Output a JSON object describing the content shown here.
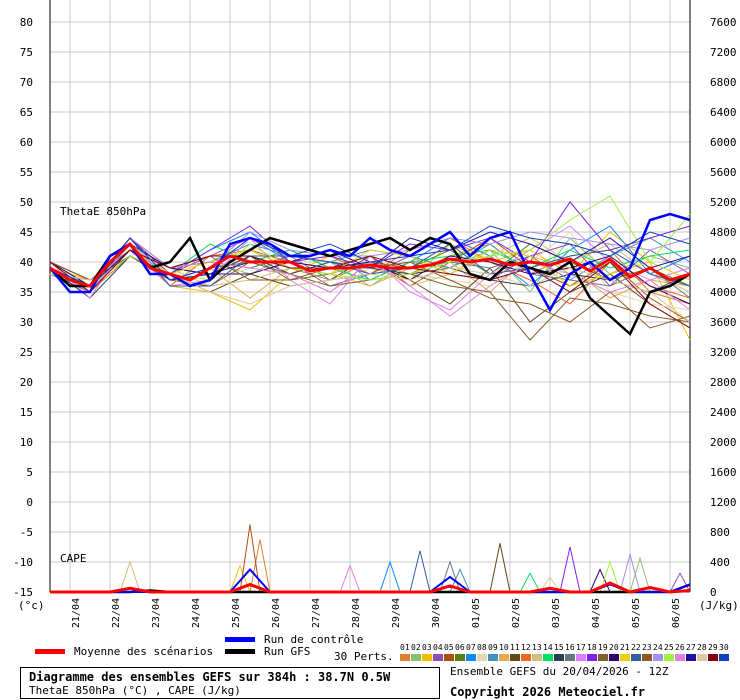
{
  "chart_data": {
    "type": "line",
    "title": "Diagramme des ensembles GEFS sur 384h : 38.7N 0.5W",
    "subtitle": "ThetaE 850hPa (°C) , CAPE (J/kg)",
    "run_info": "Ensemble GEFS du 20/04/2026 - 12Z",
    "copyright": "Copyright 2026 Meteociel.fr",
    "panel_labels": {
      "thetae": "ThetaE 850hPa",
      "cape": "CAPE"
    },
    "y_left": {
      "unit": "(°c)",
      "range": [
        -15,
        80
      ],
      "ticks": [
        80,
        75,
        70,
        65,
        60,
        55,
        50,
        45,
        40,
        35,
        30,
        25,
        20,
        15,
        10,
        5,
        0,
        -5,
        -10,
        -15
      ]
    },
    "y_right": {
      "unit": "(J/kg)",
      "range": [
        0,
        7600
      ],
      "ticks": [
        7600,
        7200,
        6800,
        6400,
        6000,
        5600,
        5200,
        4800,
        4400,
        4000,
        3600,
        3200,
        2800,
        2400,
        2000,
        1600,
        1200,
        800,
        400,
        0
      ]
    },
    "x": {
      "unit": "hours",
      "range": [
        0,
        384
      ],
      "start": "20/04 12Z",
      "tick_labels": [
        "21/04",
        "22/04",
        "23/04",
        "24/04",
        "25/04",
        "26/04",
        "27/04",
        "28/04",
        "29/04",
        "30/04",
        "01/05",
        "02/05",
        "03/05",
        "04/05",
        "05/05",
        "06/05"
      ]
    },
    "legend": {
      "mean": "Moyenne des scénarios",
      "control": "Run de contrôle",
      "gfs": "Run GFS",
      "perts": "30 Perts."
    },
    "colors": {
      "mean": "#ff0000",
      "control": "#0000ff",
      "gfs": "#000000",
      "perts": [
        "#e07f30",
        "#88c070",
        "#f0c000",
        "#9050b0",
        "#b05010",
        "#588010",
        "#1088ff",
        "#e8d8b0",
        "#4090c0",
        "#e8a850",
        "#604818",
        "#f06820",
        "#d0c080",
        "#00e060",
        "#284058",
        "#687880",
        "#e080f8",
        "#8020f0",
        "#806030",
        "#300070",
        "#f0d000",
        "#3060a0",
        "#905820",
        "#a090f0",
        "#a0f040",
        "#e080e0",
        "#2010a0",
        "#e0c8a0",
        "#880010",
        "#1040c0"
      ]
    },
    "pert_labels": [
      "01",
      "02",
      "03",
      "04",
      "05",
      "06",
      "07",
      "08",
      "09",
      "10",
      "11",
      "12",
      "13",
      "14",
      "15",
      "16",
      "17",
      "18",
      "19",
      "20",
      "21",
      "22",
      "23",
      "24",
      "25",
      "26",
      "27",
      "28",
      "29",
      "30"
    ],
    "thetae_step_h": 12,
    "mean": [
      39,
      37,
      36,
      40,
      43,
      39,
      38,
      37,
      39,
      41,
      40,
      40,
      40,
      38.5,
      39,
      39,
      39.5,
      39,
      39,
      39.5,
      40.5,
      40,
      40.5,
      39.5,
      40,
      39.5,
      40.5,
      38.5,
      40.5,
      37.5,
      39,
      37,
      38
    ],
    "control": [
      39,
      35,
      35,
      41,
      43,
      38,
      38,
      36,
      37,
      43,
      44,
      43,
      41,
      41,
      42,
      41,
      44,
      42,
      41,
      43,
      45,
      41,
      44,
      45,
      38,
      32,
      38,
      40,
      37,
      39,
      47,
      48,
      47
    ],
    "gfs": [
      39,
      36,
      36,
      41,
      43,
      39,
      40,
      44,
      37,
      40,
      42,
      44,
      43,
      42,
      41,
      42,
      43,
      44,
      42,
      44,
      43,
      38,
      37,
      40,
      39,
      38,
      40,
      34,
      31,
      28,
      35,
      36,
      38
    ],
    "pert_step_h": 24,
    "perts": [
      [
        38,
        35,
        41,
        37,
        38,
        42,
        39,
        37,
        40,
        38,
        41,
        43,
        38,
        41,
        42,
        35,
        33
      ],
      [
        40,
        36,
        44,
        39,
        40,
        38,
        41,
        40,
        36,
        40,
        39,
        42,
        35,
        44,
        38,
        41,
        39
      ],
      [
        39,
        37,
        42,
        36,
        35,
        32,
        38,
        41,
        39,
        37,
        43,
        40,
        42,
        38,
        45,
        40,
        27
      ],
      [
        38,
        35,
        43,
        38,
        41,
        44,
        40,
        36,
        38,
        41,
        38,
        37,
        41,
        43,
        36,
        42,
        38
      ],
      [
        40,
        36,
        42,
        37,
        36,
        40,
        42,
        39,
        41,
        36,
        40,
        44,
        39,
        36,
        40,
        34,
        30
      ],
      [
        39,
        34,
        44,
        39,
        38,
        41,
        37,
        38,
        40,
        39,
        42,
        38,
        43,
        40,
        37,
        39,
        36
      ],
      [
        38,
        36,
        41,
        38,
        42,
        45,
        40,
        42,
        37,
        40,
        44,
        41,
        36,
        42,
        46,
        38,
        41
      ],
      [
        40,
        37,
        43,
        36,
        37,
        39,
        38,
        35,
        39,
        38,
        37,
        36,
        40,
        45,
        35,
        33,
        32
      ],
      [
        39,
        35,
        42,
        39,
        40,
        43,
        41,
        40,
        42,
        41,
        39,
        43,
        38,
        37,
        41,
        44,
        40
      ],
      [
        38,
        36,
        44,
        37,
        39,
        34,
        39,
        38,
        36,
        39,
        40,
        35,
        41,
        39,
        34,
        37,
        36
      ],
      [
        40,
        37,
        41,
        38,
        35,
        38,
        36,
        37,
        41,
        37,
        33,
        39,
        30,
        35,
        38,
        33,
        29
      ],
      [
        39,
        35,
        43,
        36,
        41,
        42,
        40,
        41,
        38,
        42,
        44,
        40,
        37,
        33,
        40,
        36,
        34
      ],
      [
        38,
        36,
        42,
        39,
        36,
        37,
        39,
        38,
        40,
        36,
        38,
        41,
        44,
        40,
        43,
        38,
        35
      ],
      [
        40,
        36,
        44,
        38,
        43,
        40,
        42,
        39,
        37,
        40,
        41,
        42,
        39,
        42,
        39,
        41,
        42
      ],
      [
        39,
        34,
        41,
        37,
        38,
        41,
        38,
        40,
        39,
        38,
        39,
        37,
        36,
        38,
        37,
        35,
        38
      ],
      [
        38,
        37,
        43,
        39,
        40,
        39,
        41,
        37,
        38,
        39,
        40,
        39,
        41,
        37,
        36,
        39,
        34
      ],
      [
        40,
        35,
        42,
        36,
        37,
        44,
        37,
        33,
        41,
        35,
        32,
        38,
        42,
        46,
        40,
        37,
        39
      ],
      [
        39,
        36,
        44,
        38,
        42,
        46,
        40,
        41,
        39,
        43,
        42,
        44,
        40,
        50,
        42,
        44,
        46
      ],
      [
        38,
        37,
        41,
        37,
        39,
        40,
        38,
        36,
        37,
        38,
        36,
        35,
        27,
        34,
        33,
        31,
        30
      ],
      [
        40,
        36,
        43,
        39,
        38,
        38,
        40,
        39,
        40,
        37,
        41,
        40,
        38,
        39,
        41,
        36,
        33
      ],
      [
        39,
        35,
        42,
        38,
        40,
        42,
        39,
        38,
        42,
        41,
        38,
        42,
        41,
        36,
        38,
        40,
        37
      ],
      [
        38,
        36,
        44,
        36,
        36,
        41,
        41,
        40,
        38,
        39,
        43,
        38,
        39,
        41,
        42,
        38,
        36
      ],
      [
        40,
        37,
        42,
        39,
        41,
        37,
        37,
        39,
        39,
        40,
        37,
        34,
        33,
        30,
        35,
        29,
        31
      ],
      [
        39,
        35,
        43,
        37,
        39,
        45,
        42,
        41,
        41,
        42,
        44,
        43,
        45,
        44,
        43,
        42,
        44
      ],
      [
        38,
        36,
        41,
        38,
        37,
        43,
        39,
        38,
        37,
        38,
        40,
        41,
        42,
        47,
        51,
        40,
        48
      ],
      [
        40,
        34,
        44,
        39,
        40,
        39,
        38,
        35,
        40,
        36,
        31,
        36,
        40,
        38,
        35,
        37,
        32
      ],
      [
        39,
        36,
        42,
        37,
        38,
        40,
        40,
        42,
        39,
        44,
        42,
        45,
        43,
        40,
        44,
        39,
        41
      ],
      [
        38,
        37,
        43,
        38,
        35,
        33,
        36,
        37,
        38,
        37,
        39,
        38,
        36,
        39,
        37,
        35,
        30
      ],
      [
        40,
        35,
        42,
        39,
        41,
        41,
        39,
        39,
        41,
        39,
        38,
        37,
        39,
        35,
        40,
        33,
        29
      ],
      [
        39,
        36,
        44,
        37,
        39,
        44,
        41,
        43,
        40,
        41,
        42,
        46,
        44,
        43,
        41,
        45,
        43
      ]
    ],
    "cape_step_h": 12,
    "cape_mean": [
      0,
      0,
      0,
      0,
      50,
      0,
      0,
      0,
      0,
      0,
      100,
      0,
      0,
      0,
      0,
      0,
      0,
      0,
      0,
      0,
      80,
      0,
      0,
      0,
      0,
      50,
      0,
      0,
      120,
      0,
      60,
      0,
      20
    ],
    "cape_control": [
      0,
      0,
      0,
      0,
      0,
      0,
      0,
      0,
      0,
      0,
      300,
      0,
      0,
      0,
      0,
      0,
      0,
      0,
      0,
      0,
      200,
      0,
      0,
      0,
      0,
      0,
      0,
      0,
      100,
      0,
      0,
      0,
      100
    ],
    "cape_gfs": [
      0,
      0,
      0,
      0,
      0,
      20,
      0,
      0,
      0,
      0,
      0,
      0,
      0,
      0,
      0,
      0,
      0,
      0,
      0,
      0,
      0,
      0,
      0,
      0,
      0,
      0,
      0,
      0,
      0,
      0,
      0,
      0,
      100
    ],
    "cape_spikes": [
      {
        "pert": 5,
        "h": 120,
        "value": 900
      },
      {
        "pert": 1,
        "h": 126,
        "value": 700
      },
      {
        "pert": 13,
        "h": 48,
        "value": 400
      },
      {
        "pert": 3,
        "h": 114,
        "value": 350
      },
      {
        "pert": 7,
        "h": 204,
        "value": 400
      },
      {
        "pert": 22,
        "h": 222,
        "value": 550
      },
      {
        "pert": 9,
        "h": 246,
        "value": 300
      },
      {
        "pert": 11,
        "h": 270,
        "value": 650
      },
      {
        "pert": 18,
        "h": 312,
        "value": 600
      },
      {
        "pert": 24,
        "h": 348,
        "value": 500
      },
      {
        "pert": 2,
        "h": 354,
        "value": 450
      },
      {
        "pert": 25,
        "h": 336,
        "value": 400
      },
      {
        "pert": 14,
        "h": 288,
        "value": 250
      },
      {
        "pert": 26,
        "h": 180,
        "value": 350
      },
      {
        "pert": 16,
        "h": 240,
        "value": 400
      },
      {
        "pert": 20,
        "h": 330,
        "value": 300
      },
      {
        "pert": 4,
        "h": 378,
        "value": 250
      },
      {
        "pert": 28,
        "h": 300,
        "value": 200
      }
    ]
  }
}
